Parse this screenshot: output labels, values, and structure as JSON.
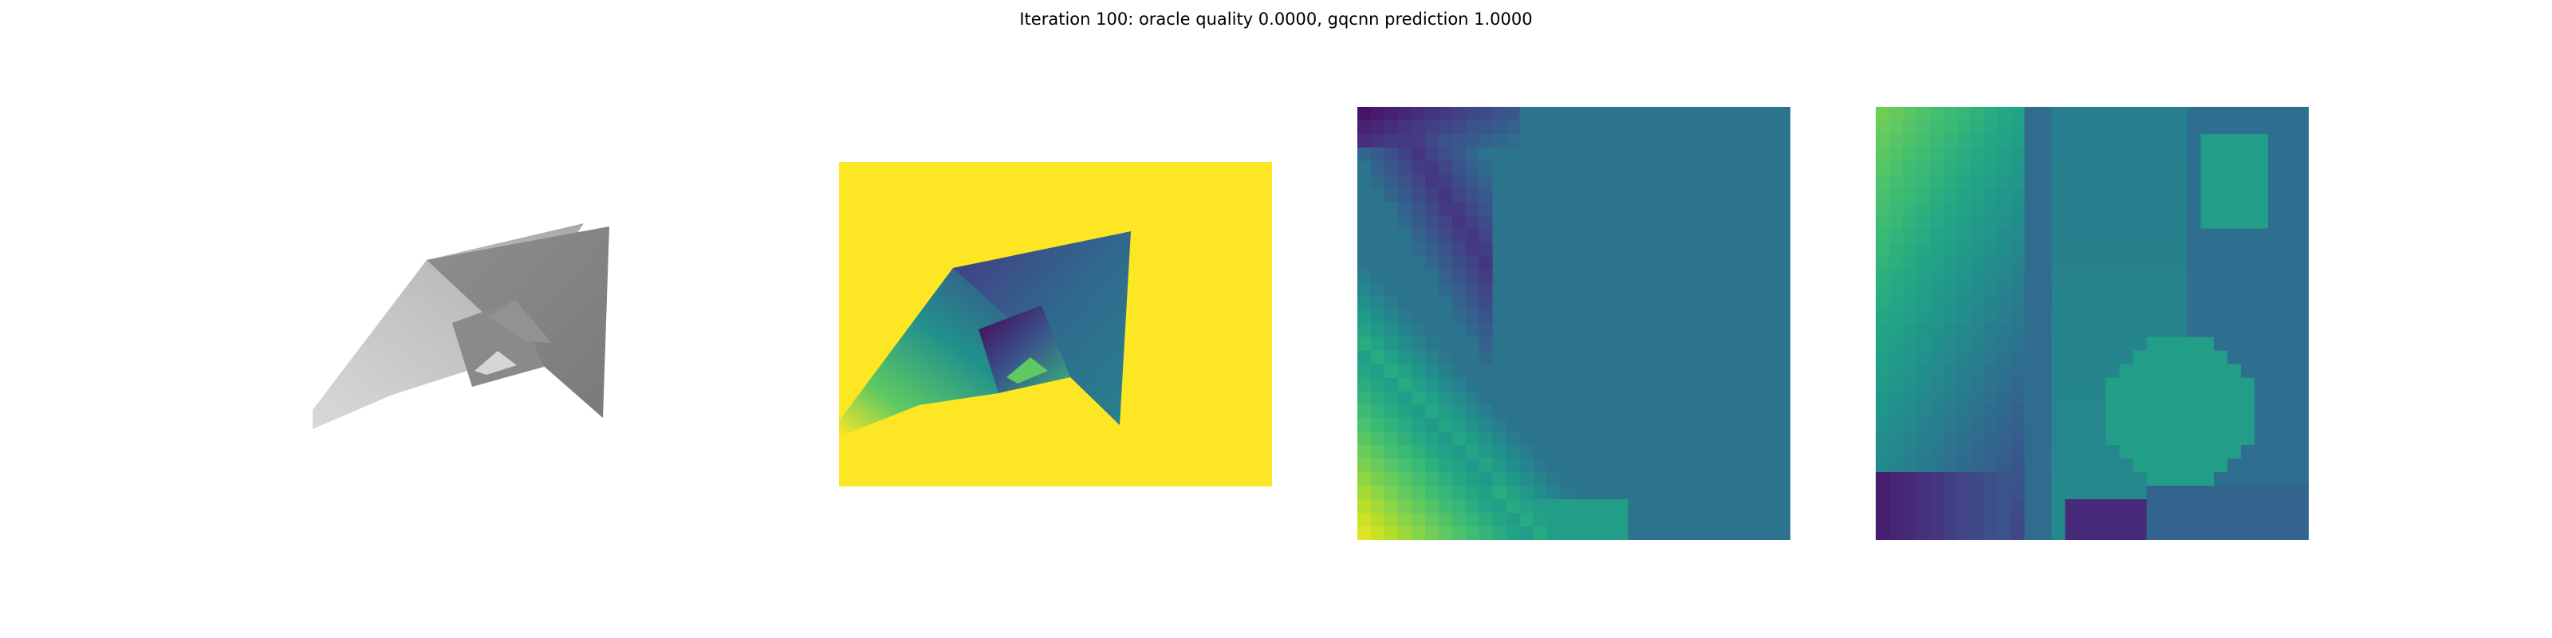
{
  "figure": {
    "title": "Iteration 100: oracle quality 0.0000, gqcnn prediction 1.0000"
  },
  "panels": [
    {
      "id": "color",
      "description": "grayscale rendered object"
    },
    {
      "id": "depth",
      "description": "depth image with viridis colormap"
    },
    {
      "id": "crop_a",
      "description": "grasp crop"
    },
    {
      "id": "crop_b",
      "description": "grasp crop"
    }
  ],
  "colors": {
    "viridis_dark": "#440154",
    "viridis_teal": "#2c728e",
    "viridis_green": "#28ae80",
    "viridis_yellow": "#fde725"
  }
}
